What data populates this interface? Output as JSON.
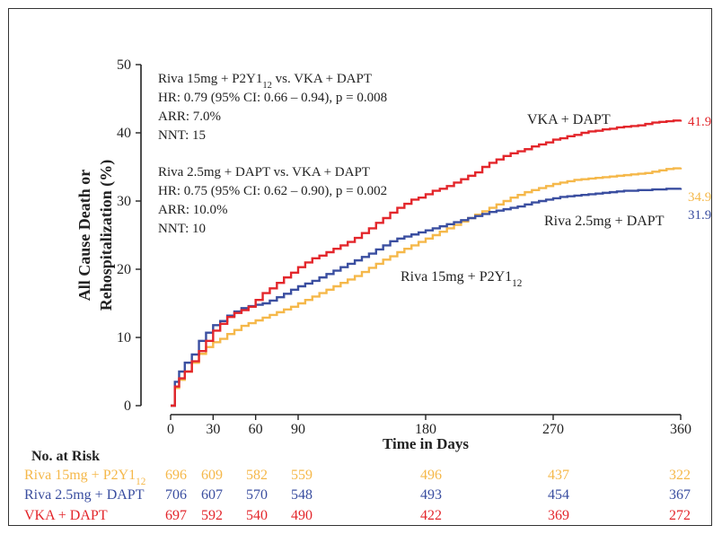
{
  "colors": {
    "vka": "#e3262b",
    "riva25": "#3a4ea0",
    "riva15": "#f5b84a",
    "axis": "#222222",
    "text": "#222222"
  },
  "chart_data": {
    "type": "line",
    "ylabel": "All Cause Death or Rehospitalization (%)",
    "ylabel_lines": [
      "All Cause Death or",
      "Rehospitalization (%)"
    ],
    "xlabel": "Time in Days",
    "xticks": [
      0,
      30,
      60,
      90,
      180,
      270,
      360
    ],
    "yticks": [
      0,
      10,
      20,
      30,
      40,
      50
    ],
    "xlim": [
      0,
      360
    ],
    "ylim": [
      0,
      50
    ],
    "series": [
      {
        "name": "VKA + DAPT",
        "key": "vka",
        "end_label": "41.9",
        "x": [
          0,
          3,
          6,
          10,
          15,
          20,
          25,
          30,
          35,
          40,
          45,
          50,
          55,
          60,
          65,
          70,
          75,
          80,
          85,
          90,
          95,
          100,
          105,
          110,
          115,
          120,
          125,
          130,
          135,
          140,
          145,
          150,
          155,
          160,
          165,
          170,
          175,
          180,
          185,
          190,
          195,
          200,
          205,
          210,
          215,
          220,
          225,
          230,
          235,
          240,
          245,
          250,
          255,
          260,
          265,
          270,
          275,
          280,
          285,
          290,
          295,
          300,
          305,
          310,
          315,
          320,
          325,
          330,
          335,
          340,
          345,
          350,
          355,
          360
        ],
        "values": [
          0,
          2.8,
          4,
          5,
          6.5,
          8,
          9.5,
          11,
          12,
          13,
          13.6,
          14,
          14.5,
          15.5,
          16.5,
          17.2,
          18,
          18.8,
          19.5,
          20.3,
          21,
          21.6,
          22,
          22.5,
          23,
          23.5,
          24,
          24.6,
          25.3,
          26,
          26.8,
          27.5,
          28.3,
          29,
          29.6,
          30.2,
          30.5,
          31,
          31.5,
          31.8,
          32.2,
          32.7,
          33.2,
          33.7,
          34.2,
          35,
          35.6,
          36.1,
          36.6,
          37,
          37.3,
          37.6,
          38,
          38.3,
          38.6,
          39,
          39.2,
          39.5,
          39.7,
          40,
          40.2,
          40.3,
          40.5,
          40.6,
          40.8,
          40.9,
          41,
          41.1,
          41.3,
          41.5,
          41.6,
          41.7,
          41.8,
          41.9
        ]
      },
      {
        "name": "Riva 2.5mg + DAPT",
        "key": "riva25",
        "end_label": "31.9",
        "x": [
          0,
          3,
          6,
          10,
          15,
          20,
          25,
          30,
          35,
          40,
          45,
          50,
          55,
          60,
          65,
          70,
          75,
          80,
          85,
          90,
          95,
          100,
          105,
          110,
          115,
          120,
          125,
          130,
          135,
          140,
          145,
          150,
          155,
          160,
          165,
          170,
          175,
          180,
          185,
          190,
          195,
          200,
          205,
          210,
          215,
          220,
          225,
          230,
          235,
          240,
          245,
          250,
          255,
          260,
          265,
          270,
          275,
          280,
          285,
          290,
          295,
          300,
          305,
          310,
          315,
          320,
          325,
          330,
          335,
          340,
          345,
          350,
          355,
          360
        ],
        "values": [
          0,
          3.5,
          5,
          6.3,
          7.5,
          9.5,
          10.7,
          11.8,
          12.4,
          13.2,
          13.8,
          14.3,
          14.6,
          14.8,
          15,
          15.4,
          15.9,
          16.4,
          17,
          17.5,
          17.9,
          18.3,
          18.8,
          19.3,
          19.8,
          20.3,
          20.8,
          21.3,
          21.8,
          22.3,
          22.9,
          23.5,
          24.1,
          24.5,
          24.8,
          25.1,
          25.4,
          25.7,
          26,
          26.3,
          26.6,
          26.9,
          27.2,
          27.5,
          27.8,
          28.1,
          28.4,
          28.6,
          28.8,
          29,
          29.2,
          29.5,
          29.8,
          30,
          30.2,
          30.4,
          30.6,
          30.7,
          30.8,
          30.9,
          31,
          31.1,
          31.2,
          31.3,
          31.4,
          31.5,
          31.5,
          31.6,
          31.6,
          31.7,
          31.7,
          31.8,
          31.8,
          31.9
        ]
      },
      {
        "name": "Riva 15mg + P2Y12",
        "key": "riva15",
        "end_label": "34.9",
        "x": [
          0,
          3,
          6,
          10,
          15,
          20,
          25,
          30,
          35,
          40,
          45,
          50,
          55,
          60,
          65,
          70,
          75,
          80,
          85,
          90,
          95,
          100,
          105,
          110,
          115,
          120,
          125,
          130,
          135,
          140,
          145,
          150,
          155,
          160,
          165,
          170,
          175,
          180,
          185,
          190,
          195,
          200,
          205,
          210,
          215,
          220,
          225,
          230,
          235,
          240,
          245,
          250,
          255,
          260,
          265,
          270,
          275,
          280,
          285,
          290,
          295,
          300,
          305,
          310,
          315,
          320,
          325,
          330,
          335,
          340,
          345,
          350,
          355,
          360
        ],
        "values": [
          0,
          2.6,
          3.8,
          5,
          6.3,
          7.6,
          8.6,
          9.3,
          9.8,
          10.5,
          11.1,
          11.7,
          12.1,
          12.5,
          12.9,
          13.3,
          13.7,
          14.1,
          14.5,
          15,
          15.5,
          16,
          16.5,
          17,
          17.5,
          18,
          18.5,
          19,
          19.6,
          20.2,
          20.8,
          21.4,
          21.9,
          22.5,
          23,
          23.5,
          24,
          24.5,
          25,
          25.5,
          26,
          26.5,
          27,
          27.5,
          28,
          28.5,
          29,
          29.5,
          30,
          30.5,
          30.9,
          31.3,
          31.6,
          31.9,
          32.2,
          32.5,
          32.7,
          32.9,
          33.1,
          33.2,
          33.3,
          33.4,
          33.5,
          33.6,
          33.7,
          33.8,
          33.9,
          34,
          34.1,
          34.3,
          34.5,
          34.7,
          34.8,
          34.9
        ]
      }
    ],
    "annotations": {
      "block1": [
        "Riva 15mg + P2Y12 vs. VKA + DAPT",
        "HR: 0.79 (95% CI: 0.66 – 0.94), p = 0.008",
        "ARR: 7.0%",
        "NNT: 15"
      ],
      "block2": [
        "Riva 2.5mg + DAPT vs. VKA + DAPT",
        "HR: 0.75 (95% CI: 0.62 – 0.90), p = 0.002",
        "ARR: 10.0%",
        "NNT: 10"
      ],
      "curve_label_vka": "VKA + DAPT",
      "curve_label_riva25": "Riva 2.5mg + DAPT",
      "curve_label_riva15": "Riva 15mg + P2Y12"
    },
    "risk_table": {
      "title": "No. at Risk",
      "timepoints": [
        0,
        30,
        60,
        90,
        180,
        270,
        360
      ],
      "rows": [
        {
          "label": "Riva 15mg + P2Y12",
          "key": "riva15",
          "values": [
            696,
            609,
            582,
            559,
            496,
            437,
            322
          ]
        },
        {
          "label": "Riva 2.5mg + DAPT",
          "key": "riva25",
          "values": [
            706,
            607,
            570,
            548,
            493,
            454,
            367
          ]
        },
        {
          "label": "VKA + DAPT",
          "key": "vka",
          "values": [
            697,
            592,
            540,
            490,
            422,
            369,
            272
          ]
        }
      ]
    }
  }
}
